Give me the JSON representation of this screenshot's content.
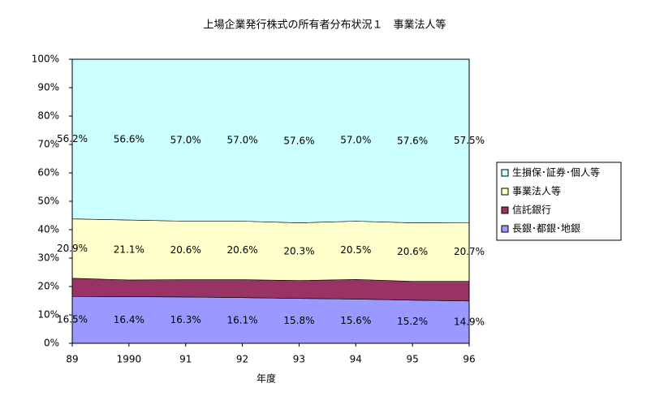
{
  "chart_data": {
    "type": "stacked_area",
    "title": "上場企業発行株式の所有者分布状況１　事業法人等",
    "x_label": "年度",
    "categories": [
      "89",
      "1990",
      "91",
      "92",
      "93",
      "94",
      "95",
      "96"
    ],
    "series": [
      {
        "name": "長銀･都銀･地銀",
        "color": "#9999ff",
        "values": [
          16.5,
          16.4,
          16.3,
          16.1,
          15.8,
          15.6,
          15.2,
          14.9
        ],
        "value_labels": [
          "16.5%",
          "16.4%",
          "16.3%",
          "16.1%",
          "15.8%",
          "15.6%",
          "15.2%",
          "14.9%"
        ]
      },
      {
        "name": "信託銀行",
        "color": "#993366",
        "values": [
          6.4,
          5.9,
          6.1,
          6.3,
          6.3,
          6.9,
          6.6,
          6.9
        ]
      },
      {
        "name": "事業法人等",
        "color": "#ffffcc",
        "values": [
          20.9,
          21.1,
          20.6,
          20.6,
          20.3,
          20.5,
          20.6,
          20.7
        ],
        "value_labels": [
          "20.9%",
          "21.1%",
          "20.6%",
          "20.6%",
          "20.3%",
          "20.5%",
          "20.6%",
          "20.7%"
        ]
      },
      {
        "name": "生損保･証券･個人等",
        "color": "#ccffff",
        "values": [
          56.2,
          56.6,
          57.0,
          57.0,
          57.6,
          57.0,
          57.6,
          57.5
        ],
        "value_labels": [
          "56.2%",
          "56.6%",
          "57.0%",
          "57.0%",
          "57.6%",
          "57.0%",
          "57.6%",
          "57.5%"
        ]
      }
    ],
    "ylim": [
      0,
      100
    ],
    "yticks": [
      {
        "value": 0,
        "label": "0%"
      },
      {
        "value": 10,
        "label": "10%"
      },
      {
        "value": 20,
        "label": "20%"
      },
      {
        "value": 30,
        "label": "30%"
      },
      {
        "value": 40,
        "label": "40%"
      },
      {
        "value": 50,
        "label": "50%"
      },
      {
        "value": 60,
        "label": "60%"
      },
      {
        "value": 70,
        "label": "70%"
      },
      {
        "value": 80,
        "label": "80%"
      },
      {
        "value": 90,
        "label": "90%"
      },
      {
        "value": 100,
        "label": "100%"
      }
    ],
    "legend": "right"
  }
}
